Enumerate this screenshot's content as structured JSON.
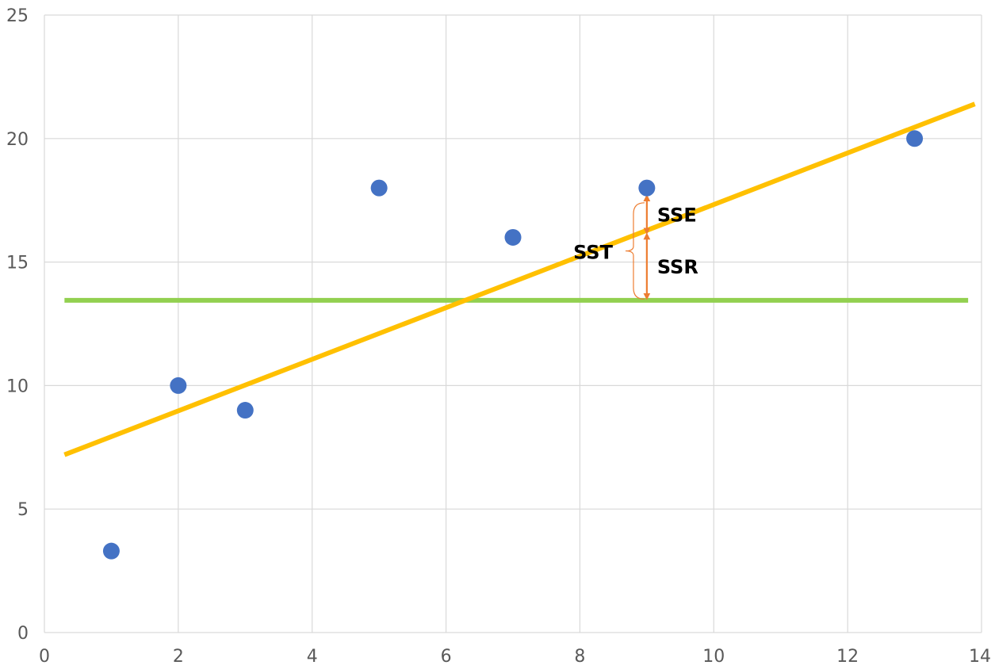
{
  "chart_data": {
    "type": "scatter",
    "title": "",
    "xlabel": "",
    "ylabel": "",
    "xlim": [
      0,
      14
    ],
    "ylim": [
      0,
      25
    ],
    "x_ticks": [
      0,
      2,
      4,
      6,
      8,
      10,
      12,
      14
    ],
    "y_ticks": [
      0,
      5,
      10,
      15,
      20,
      25
    ],
    "grid": true,
    "points": [
      {
        "x": 1,
        "y": 3.3
      },
      {
        "x": 2,
        "y": 10
      },
      {
        "x": 3,
        "y": 9
      },
      {
        "x": 5,
        "y": 18
      },
      {
        "x": 7,
        "y": 16
      },
      {
        "x": 9,
        "y": 18
      },
      {
        "x": 13,
        "y": 20
      }
    ],
    "regression_line": {
      "x": [
        0.3,
        13.9
      ],
      "y": [
        7.2,
        21.4
      ]
    },
    "mean_line": {
      "x": [
        0.3,
        13.8
      ],
      "y": [
        13.45,
        13.45
      ]
    },
    "annotations": [
      {
        "label": "SSE",
        "x": 9,
        "y_from": 16.25,
        "y_to": 17.6
      },
      {
        "label": "SSR",
        "x": 9,
        "y_from": 13.6,
        "y_to": 16.05
      },
      {
        "label": "SST",
        "x": 8.8,
        "y_from": 13.5,
        "y_to": 17.4
      }
    ],
    "colors": {
      "points": "#4472C4",
      "regression": "#FFC000",
      "mean": "#92D050",
      "arrows": "#ED7D31",
      "grid": "#D9D9D9"
    }
  }
}
